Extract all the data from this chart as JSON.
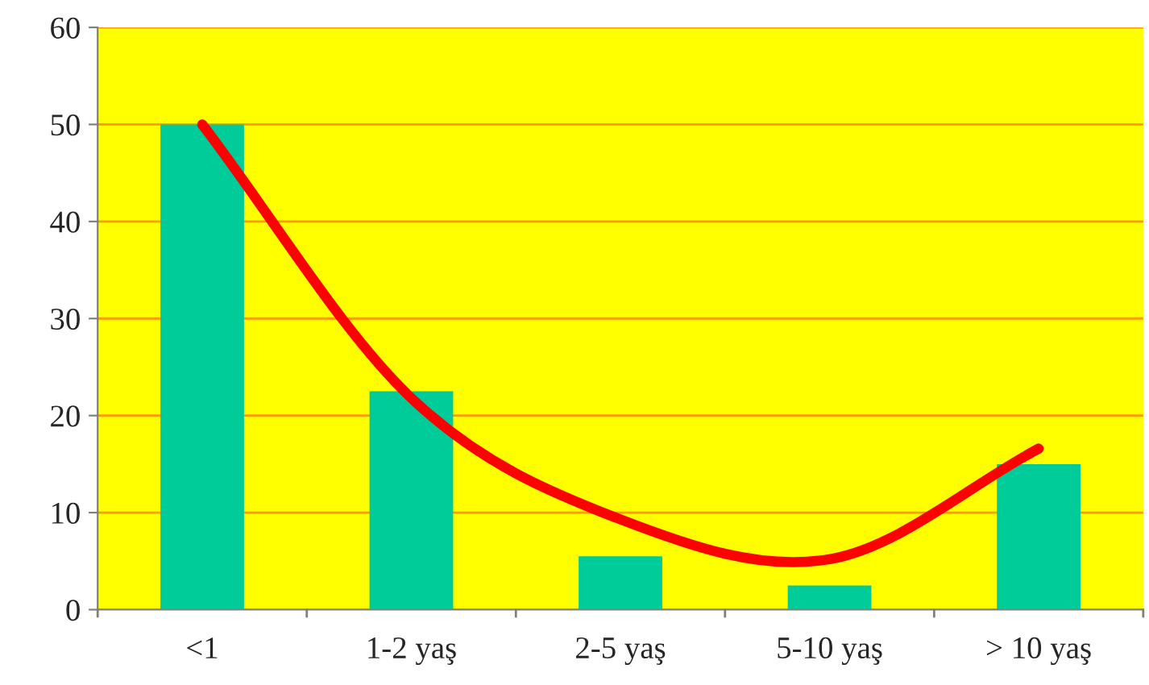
{
  "chart_data": {
    "type": "bar",
    "categories": [
      "<1",
      "1-2 yaş",
      "2-5 yaş",
      "5-10 yaş",
      "> 10 yaş"
    ],
    "series": [
      {
        "color": "#00cc99",
        "values": [
          50,
          22.5,
          5.5,
          2.5,
          15
        ]
      },
      {
        "type": "line",
        "color": "#ff0000",
        "values": [
          50,
          21.8,
          9.3,
          5.2,
          16.6
        ]
      }
    ],
    "ylim": [
      0,
      60
    ],
    "yticks": [
      0,
      10,
      20,
      30,
      40,
      50,
      60
    ],
    "grid": "y",
    "legend": false,
    "line_style": "solid",
    "marker": "none"
  }
}
